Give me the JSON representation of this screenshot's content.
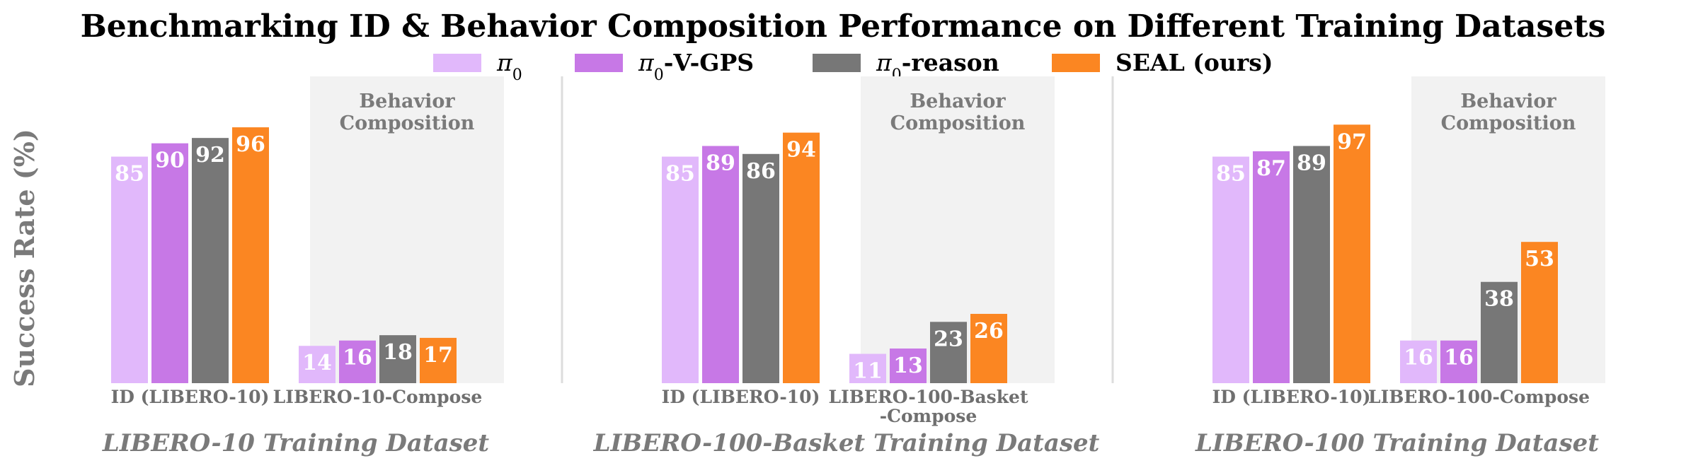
{
  "chart_data": {
    "type": "bar",
    "title": "Benchmarking ID & Behavior Composition Performance on Different Training Datasets",
    "ylabel": "Success Rate (%)",
    "ylim": [
      0,
      100
    ],
    "legend_position": "top-center",
    "series": [
      {
        "name": "π0",
        "color": "#e1b8fb"
      },
      {
        "name": "π0-V-GPS",
        "color": "#c778e6"
      },
      {
        "name": "π0-reason",
        "color": "#777777"
      },
      {
        "name": "SEAL (ours)",
        "color": "#fb8622"
      }
    ],
    "shade_label": [
      "Behavior",
      "Composition"
    ],
    "panels": [
      {
        "dataset": "LIBERO-10 Training Dataset",
        "groups": [
          {
            "label": [
              "ID (LIBERO-10)"
            ],
            "values": [
              85,
              90,
              92,
              96
            ]
          },
          {
            "label": [
              "LIBERO-10-Compose"
            ],
            "values": [
              14,
              16,
              18,
              17
            ]
          }
        ]
      },
      {
        "dataset": "LIBERO-100-Basket Training Dataset",
        "groups": [
          {
            "label": [
              "ID (LIBERO-10)"
            ],
            "values": [
              85,
              89,
              86,
              94
            ]
          },
          {
            "label": [
              "LIBERO-100-Basket",
              "-Compose"
            ],
            "values": [
              11,
              13,
              23,
              26
            ]
          }
        ]
      },
      {
        "dataset": "LIBERO-100 Training Dataset",
        "groups": [
          {
            "label": [
              "ID (LIBERO-10)"
            ],
            "values": [
              85,
              87,
              89,
              97
            ]
          },
          {
            "label": [
              "LIBERO-100-Compose"
            ],
            "values": [
              16,
              16,
              38,
              53
            ]
          }
        ]
      }
    ]
  }
}
